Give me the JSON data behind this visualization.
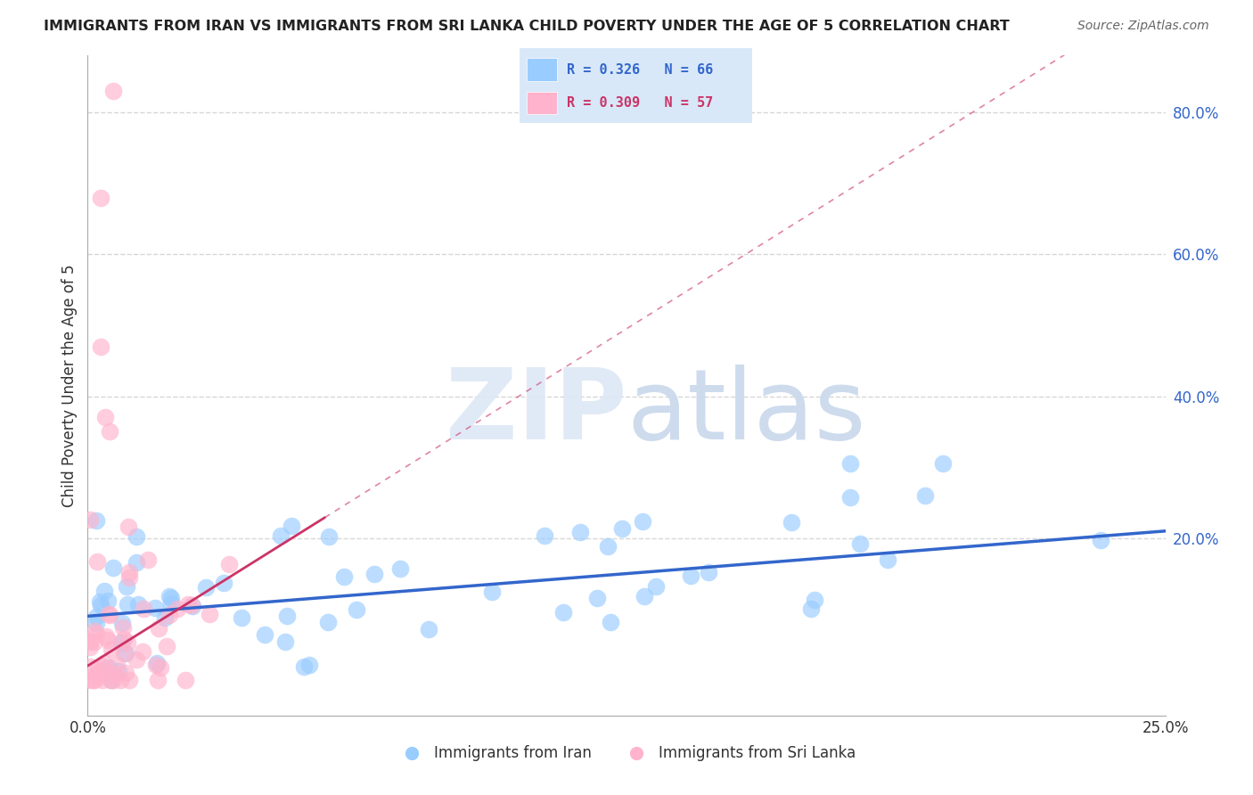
{
  "title": "IMMIGRANTS FROM IRAN VS IMMIGRANTS FROM SRI LANKA CHILD POVERTY UNDER THE AGE OF 5 CORRELATION CHART",
  "source": "Source: ZipAtlas.com",
  "ylabel": "Child Poverty Under the Age of 5",
  "x_range": [
    0.0,
    0.25
  ],
  "y_range": [
    -0.05,
    0.88
  ],
  "color_iran": "#99CCFF",
  "color_iran_line": "#3366CC",
  "color_srilanka": "#FFB3CC",
  "color_srilanka_line": "#CC3366",
  "color_grid": "#CCCCCC",
  "iran_slope": 0.48,
  "iran_intercept": 0.09,
  "sl_slope": 3.8,
  "sl_intercept": 0.02,
  "sl_line_end": 0.055
}
